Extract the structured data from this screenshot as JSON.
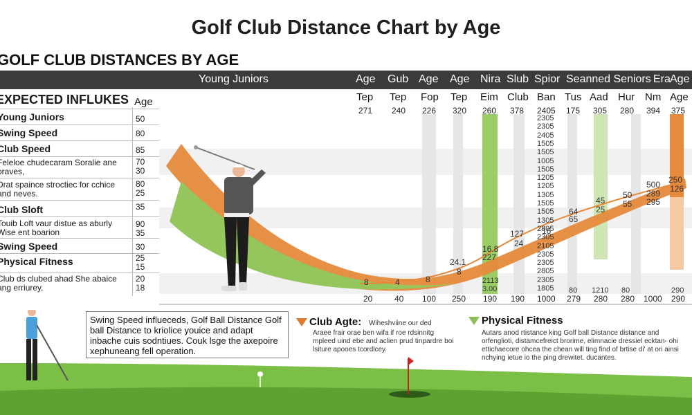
{
  "page": {
    "title": "Golf Club Distance Chart by Age",
    "subtitle": "GOLF CLUB DISTANCES BY AGE"
  },
  "header": {
    "row1": [
      "Young Juniors",
      "Age",
      "Gub",
      "Age",
      "Age",
      "Nira",
      "Slub",
      "Spior",
      "Seanned Seniors",
      "Era",
      "Age"
    ],
    "row2": [
      "Tep",
      "Tep",
      "Fop",
      "Tep",
      "Eim",
      "Club",
      "Ban",
      "Tus",
      "Aad",
      "Hur",
      "Nm",
      "Age"
    ],
    "row3": [
      "271",
      "240",
      "226",
      "320",
      "260",
      "378",
      "2405",
      "175",
      "305",
      "280",
      "394",
      "375"
    ],
    "bottom": [
      "20",
      "40",
      "100",
      "250",
      "190",
      "190",
      "1000",
      "279",
      "280",
      "280",
      "1000",
      "290"
    ]
  },
  "left_table": {
    "heading": "EXPECTED INFLUKES",
    "age_label": "Age",
    "rows": [
      {
        "label": "Young Juniors",
        "value": "50",
        "style": "bold"
      },
      {
        "label": "Swing Speed",
        "value": "80",
        "style": "bold"
      },
      {
        "label": "Club Speed",
        "value": "85",
        "style": "bold"
      },
      {
        "label": "Feleloe chudecaram Soralie ane praves,",
        "value": "70 30",
        "style": "small"
      },
      {
        "label": "Drat spaince stroctiec for cchice and neves.",
        "value": "80 25",
        "style": "small"
      },
      {
        "label": "Club Sloft",
        "value": "35",
        "style": "bold"
      },
      {
        "label": "Touib Loft vaur distue as aburly Wise ent boarion",
        "value": "90 35",
        "style": "small"
      },
      {
        "label": "Swing Speed",
        "value": "30",
        "style": "bold"
      },
      {
        "label": "Physical Fitness",
        "value": "25 15",
        "style": "bold"
      },
      {
        "label": "Club ds clubed ahad She abaice ang erriurey,",
        "value": "20 18",
        "style": "small"
      }
    ]
  },
  "column_values": [
    "2305",
    "2305",
    "2405",
    "1505",
    "1505",
    "1005",
    "1505",
    "1205",
    "1205",
    "1305",
    "1505",
    "1505",
    "1305",
    "2805",
    "2305",
    "2105",
    "2305",
    "2305",
    "2805",
    "2305",
    "1805"
  ],
  "chart_labels": {
    "curve_points": [
      "8",
      "4",
      "8",
      "24.1",
      "8",
      "16.8",
      "227",
      "127",
      "24",
      "16",
      "64",
      "65",
      "45",
      "25",
      "50",
      "55",
      "500",
      "289",
      "295",
      "250",
      "126"
    ],
    "under_labels": [
      "2113",
      "3.00",
      "80",
      "1210",
      "80",
      "290"
    ]
  },
  "info_box": {
    "text": "Swing Speed influeceds, Golf Ball Distance Golf ball Distance to kriolice youice and adapt inbache cuis sodntiues. Couk lsge the axepoire xephuneang fell operation."
  },
  "legend": {
    "club_age": {
      "title": "Club Agte:",
      "tail": "Wiheshviine our ded",
      "body": "Araee frair orae ben wifa if roe rdsinnitg mpleed uind ebe and aclien prud tinpardre boi lsiture apooes tcordlcey.",
      "color": "#e07a2e"
    },
    "physical_fitness": {
      "title": "Physical Fitness",
      "body": "Autars anod rtistance king Golf ball Distance distance and orfenglioti, distamcefreict brorime, elimnacie dressiel ecktan- ohi ettichaecore ohcea the chean will ting find of brtise di' at ori ainsi nchying ietue io the ping drewitet. ducantes.",
      "color": "#8cbf5a"
    }
  },
  "colors": {
    "orange": "#e58a3c",
    "green": "#95c65e",
    "dark_header": "#3b3b3b",
    "grass": "#7cbf46"
  }
}
